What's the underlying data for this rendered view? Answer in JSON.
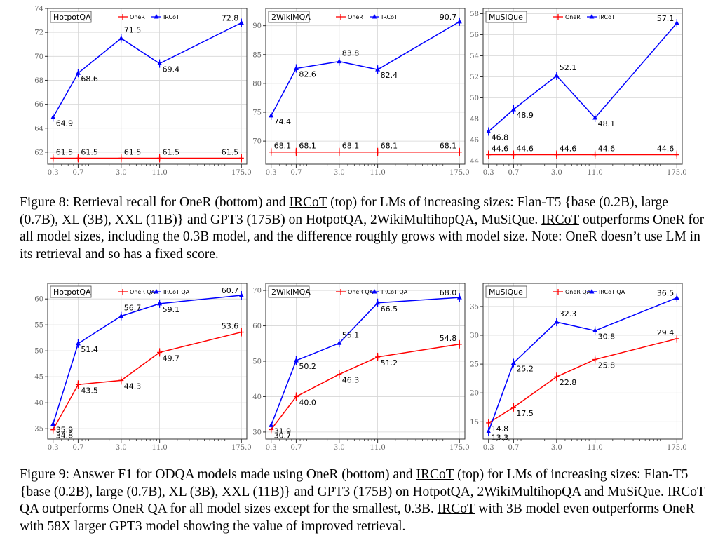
{
  "figure8": {
    "caption": {
      "p1": "Figure 8: Retrieval recall for OneR (bottom) and ",
      "ircot1": "IRCoT",
      "p2": " (top) for LMs of increasing sizes: Flan-T5 {base (0.2B), large (0.7B), XL (3B), XXL (11B)} and GPT3 (175B) on HotpotQA, 2WikiMultihopQA, MuSiQue. ",
      "ircot2": "IRCoT",
      "p3": " outperforms OneR for all model sizes, including the 0.3B model, and the difference roughly grows with model size. Note: OneR doesn’t use LM in its retrieval and so has a fixed score."
    }
  },
  "figure9": {
    "caption": {
      "p1": "Figure 9: Answer F1 for ODQA models made using OneR (bottom) and ",
      "ircot1": "IRCoT",
      "p2": " (top) for LMs of increasing sizes: Flan-T5 {base (0.2B), large (0.7B), XL (3B), XXL (11B)} and GPT3 (175B) on HotpotQA, 2WikiMultihopQA and MuSiQue. ",
      "ircot2": "IRCoT",
      "p3": " QA outperforms OneR QA for all model sizes except for the smallest, 0.3B. ",
      "ircot3": "IRCoT",
      "p4": " with 3B model even outperforms OneR with 58X larger GPT3 model showing the value of improved retrieval."
    }
  },
  "chart_data": [
    {
      "type": "line",
      "figure": "Figure 8",
      "title": "HotpotQA",
      "x": [
        0.3,
        0.7,
        3.0,
        11.0,
        175.0
      ],
      "x_tick_labels": [
        "0.3",
        "0.7",
        "3.0",
        "11.0",
        "175.0"
      ],
      "ylim": [
        61,
        74
      ],
      "yticks": [
        62,
        64,
        66,
        68,
        70,
        72,
        74
      ],
      "series": [
        {
          "name": "OneR",
          "color": "#ff0000",
          "marker": "plus",
          "values": [
            61.5,
            61.5,
            61.5,
            61.5,
            61.5
          ],
          "labels": [
            "61.5",
            "61.5",
            "61.5",
            "61.5",
            "61.5"
          ]
        },
        {
          "name": "IRCoT",
          "color": "#0000ff",
          "marker": "triangle",
          "values": [
            64.9,
            68.6,
            71.5,
            69.4,
            72.8
          ],
          "labels": [
            "64.9",
            "68.6",
            "71.5",
            "69.4",
            "72.8"
          ]
        }
      ]
    },
    {
      "type": "line",
      "figure": "Figure 8",
      "title": "2WikiMQA",
      "x": [
        0.3,
        0.7,
        3.0,
        11.0,
        175.0
      ],
      "x_tick_labels": [
        "0.3",
        "0.7",
        "3.0",
        "11.0",
        "175.0"
      ],
      "ylim": [
        66,
        93
      ],
      "yticks": [
        70,
        75,
        80,
        85,
        90
      ],
      "series": [
        {
          "name": "OneR",
          "color": "#ff0000",
          "marker": "plus",
          "values": [
            68.1,
            68.1,
            68.1,
            68.1,
            68.1
          ],
          "labels": [
            "68.1",
            "68.1",
            "68.1",
            "68.1",
            "68.1"
          ]
        },
        {
          "name": "IRCoT",
          "color": "#0000ff",
          "marker": "triangle",
          "values": [
            74.4,
            82.6,
            83.8,
            82.4,
            90.7
          ],
          "labels": [
            "74.4",
            "82.6",
            "83.8",
            "82.4",
            "90.7"
          ]
        }
      ]
    },
    {
      "type": "line",
      "figure": "Figure 8",
      "title": "MuSiQue",
      "x": [
        0.3,
        0.7,
        3.0,
        11.0,
        175.0
      ],
      "x_tick_labels": [
        "0.3",
        "0.7",
        "3.0",
        "11.0",
        "175.0"
      ],
      "ylim": [
        43.7,
        58.5
      ],
      "yticks": [
        44,
        46,
        48,
        50,
        52,
        54,
        56,
        58
      ],
      "series": [
        {
          "name": "OneR",
          "color": "#ff0000",
          "marker": "plus",
          "values": [
            44.6,
            44.6,
            44.6,
            44.6,
            44.6
          ],
          "labels": [
            "44.6",
            "44.6",
            "44.6",
            "44.6",
            "44.6"
          ]
        },
        {
          "name": "IRCoT",
          "color": "#0000ff",
          "marker": "triangle",
          "values": [
            46.8,
            48.9,
            52.1,
            48.1,
            57.1
          ],
          "labels": [
            "46.8",
            "48.9",
            "52.1",
            "48.1",
            "57.1"
          ]
        }
      ]
    },
    {
      "type": "line",
      "figure": "Figure 9",
      "title": "HotpotQA",
      "x": [
        0.3,
        0.7,
        3.0,
        11.0,
        175.0
      ],
      "x_tick_labels": [
        "0.3",
        "0.7",
        "3.0",
        "11.0",
        "175.0"
      ],
      "ylim": [
        33,
        63
      ],
      "yticks": [
        35,
        40,
        45,
        50,
        55,
        60
      ],
      "series": [
        {
          "name": "OneR QA",
          "color": "#ff0000",
          "marker": "plus",
          "values": [
            34.8,
            43.5,
            44.3,
            49.7,
            53.6
          ],
          "labels": [
            "34.8",
            "43.5",
            "44.3",
            "49.7",
            "53.6"
          ]
        },
        {
          "name": "IRCoT QA",
          "color": "#0000ff",
          "marker": "triangle",
          "values": [
            35.9,
            51.4,
            56.7,
            59.1,
            60.7
          ],
          "labels": [
            "35.9",
            "51.4",
            "56.7",
            "59.1",
            "60.7"
          ]
        }
      ]
    },
    {
      "type": "line",
      "figure": "Figure 9",
      "title": "2WikiMQA",
      "x": [
        0.3,
        0.7,
        3.0,
        11.0,
        175.0
      ],
      "x_tick_labels": [
        "0.3",
        "0.7",
        "3.0",
        "11.0",
        "175.0"
      ],
      "ylim": [
        28,
        72
      ],
      "yticks": [
        30,
        40,
        50,
        60,
        70
      ],
      "series": [
        {
          "name": "OneR QA",
          "color": "#ff0000",
          "marker": "plus",
          "values": [
            30.7,
            40.0,
            46.3,
            51.2,
            54.8
          ],
          "labels": [
            "30.7",
            "40.0",
            "46.3",
            "51.2",
            "54.8"
          ]
        },
        {
          "name": "IRCoT QA",
          "color": "#0000ff",
          "marker": "triangle",
          "values": [
            31.9,
            50.2,
            55.1,
            66.5,
            68.0
          ],
          "labels": [
            "31.9",
            "50.2",
            "55.1",
            "66.5",
            "68.0"
          ]
        }
      ]
    },
    {
      "type": "line",
      "figure": "Figure 9",
      "title": "MuSiQue",
      "x": [
        0.3,
        0.7,
        3.0,
        11.0,
        175.0
      ],
      "x_tick_labels": [
        "0.3",
        "0.7",
        "3.0",
        "11.0",
        "175.0"
      ],
      "ylim": [
        12,
        39
      ],
      "yticks": [
        15,
        20,
        25,
        30,
        35
      ],
      "series": [
        {
          "name": "OneR QA",
          "color": "#ff0000",
          "marker": "plus",
          "values": [
            14.8,
            17.5,
            22.8,
            25.8,
            29.4
          ],
          "labels": [
            "14.8",
            "17.5",
            "22.8",
            "25.8",
            "29.4"
          ]
        },
        {
          "name": "IRCoT QA",
          "color": "#0000ff",
          "marker": "triangle",
          "values": [
            13.3,
            25.2,
            32.3,
            30.8,
            36.5
          ],
          "labels": [
            "13.3",
            "25.2",
            "32.3",
            "30.8",
            "36.5"
          ]
        }
      ]
    }
  ]
}
